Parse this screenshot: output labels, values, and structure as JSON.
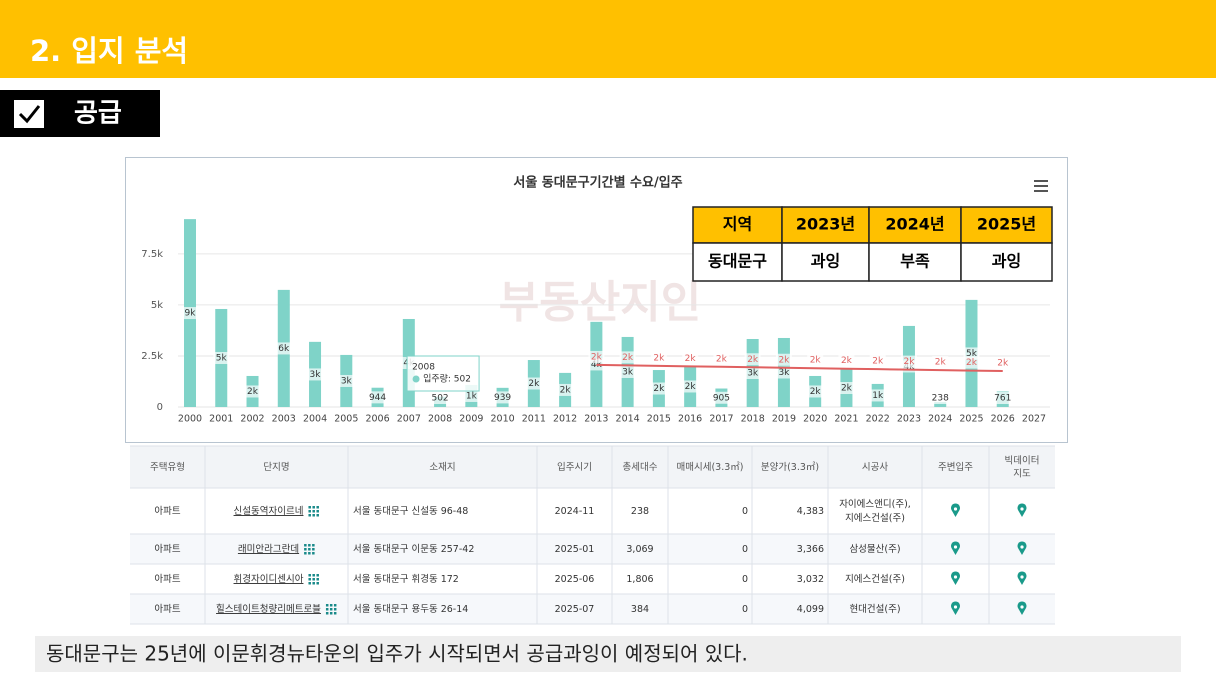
{
  "header": {
    "title": "2. 입지 분석",
    "section": "공급"
  },
  "chart_data": {
    "type": "bar",
    "title": "서울 동대문구기간별 수요/입주",
    "watermark": "부동산지인",
    "categories": [
      "2000",
      "2001",
      "2002",
      "2003",
      "2004",
      "2005",
      "2006",
      "2007",
      "2008",
      "2009",
      "2010",
      "2011",
      "2012",
      "2013",
      "2014",
      "2015",
      "2016",
      "2017",
      "2018",
      "2019",
      "2020",
      "2021",
      "2022",
      "2023",
      "2024",
      "2025",
      "2026",
      "2027"
    ],
    "series": [
      {
        "name": "입주량",
        "type": "bar",
        "color": "#7fd3c8",
        "values": [
          9200,
          4800,
          1520,
          5735,
          3190,
          2550,
          944,
          4310,
          502,
          1080,
          939,
          2300,
          1670,
          4170,
          3430,
          1810,
          2010,
          905,
          3330,
          3380,
          1520,
          1860,
          1130,
          3970,
          238,
          5245,
          761,
          null
        ],
        "value_labels": [
          "9k",
          "5k",
          "2k",
          "6k",
          "3k",
          "3k",
          "944",
          "4k",
          "502",
          "1k",
          "939",
          "2k",
          "2k",
          "4k",
          "3k",
          "2k",
          "2k",
          "905",
          "3k",
          "3k",
          "2k",
          "2k",
          "1k",
          "4k",
          "238",
          "5k",
          "761",
          null
        ]
      },
      {
        "type": "line",
        "color": "#e06060",
        "values": [
          null,
          null,
          null,
          null,
          null,
          null,
          null,
          null,
          null,
          null,
          null,
          null,
          null,
          2060,
          2037,
          2014,
          1991,
          1968,
          1945,
          1922,
          1899,
          1876,
          1853,
          1830,
          1807,
          1784,
          1760,
          null
        ],
        "value_labels": [
          null,
          null,
          null,
          null,
          null,
          null,
          null,
          null,
          null,
          null,
          null,
          null,
          null,
          "2k",
          "2k",
          "2k",
          "2k",
          "2k",
          "2k",
          "2k",
          "2k",
          "2k",
          "2k",
          "2k",
          "2k",
          "2k",
          "2k",
          null
        ]
      }
    ],
    "ylim": [
      0,
      9500
    ],
    "yticks": [
      0,
      {
        "value": 2500,
        "label": "2.5k"
      },
      {
        "value": 5000,
        "label": "5k"
      },
      {
        "value": 7500,
        "label": "7.5k"
      }
    ],
    "grid": true,
    "tooltip": {
      "x": "2008",
      "text": "입주량: 502"
    },
    "summary_table": {
      "header": [
        "지역",
        "2023년",
        "2024년",
        "2025년"
      ],
      "row": [
        "동대문구",
        "과잉",
        "부족",
        "과잉"
      ]
    }
  },
  "table": {
    "header": [
      "주택유형",
      "단지명",
      "소재지",
      "입주시기",
      "총세대수",
      "매매시세(3.3㎡)",
      "분양가(3.3㎡)",
      "시공사",
      "주변입주",
      "빅데이터\n지도"
    ],
    "rows": [
      [
        "아파트",
        "신설동역자이르네",
        "서울 동대문구 신설동 96-48",
        "2024-11",
        "238",
        "0",
        "4,383",
        "자이에스앤디(주),\n지에스건설(주)"
      ],
      [
        "아파트",
        "래미안라그란데",
        "서울 동대문구 이문동 257-42",
        "2025-01",
        "3,069",
        "0",
        "3,366",
        "삼성물산(주)"
      ],
      [
        "아파트",
        "휘경자이디센시아",
        "서울 동대문구 휘경동 172",
        "2025-06",
        "1,806",
        "0",
        "3,032",
        "지에스건설(주)"
      ],
      [
        "아파트",
        "힐스테이트청량리메트로블",
        "서울 동대문구 용두동 26-14",
        "2025-07",
        "384",
        "0",
        "4,099",
        "현대건설(주)"
      ]
    ]
  },
  "note": "동대문구는 25년에 이문휘경뉴타운의 입주가 시작되면서 공급과잉이 예정되어 있다."
}
